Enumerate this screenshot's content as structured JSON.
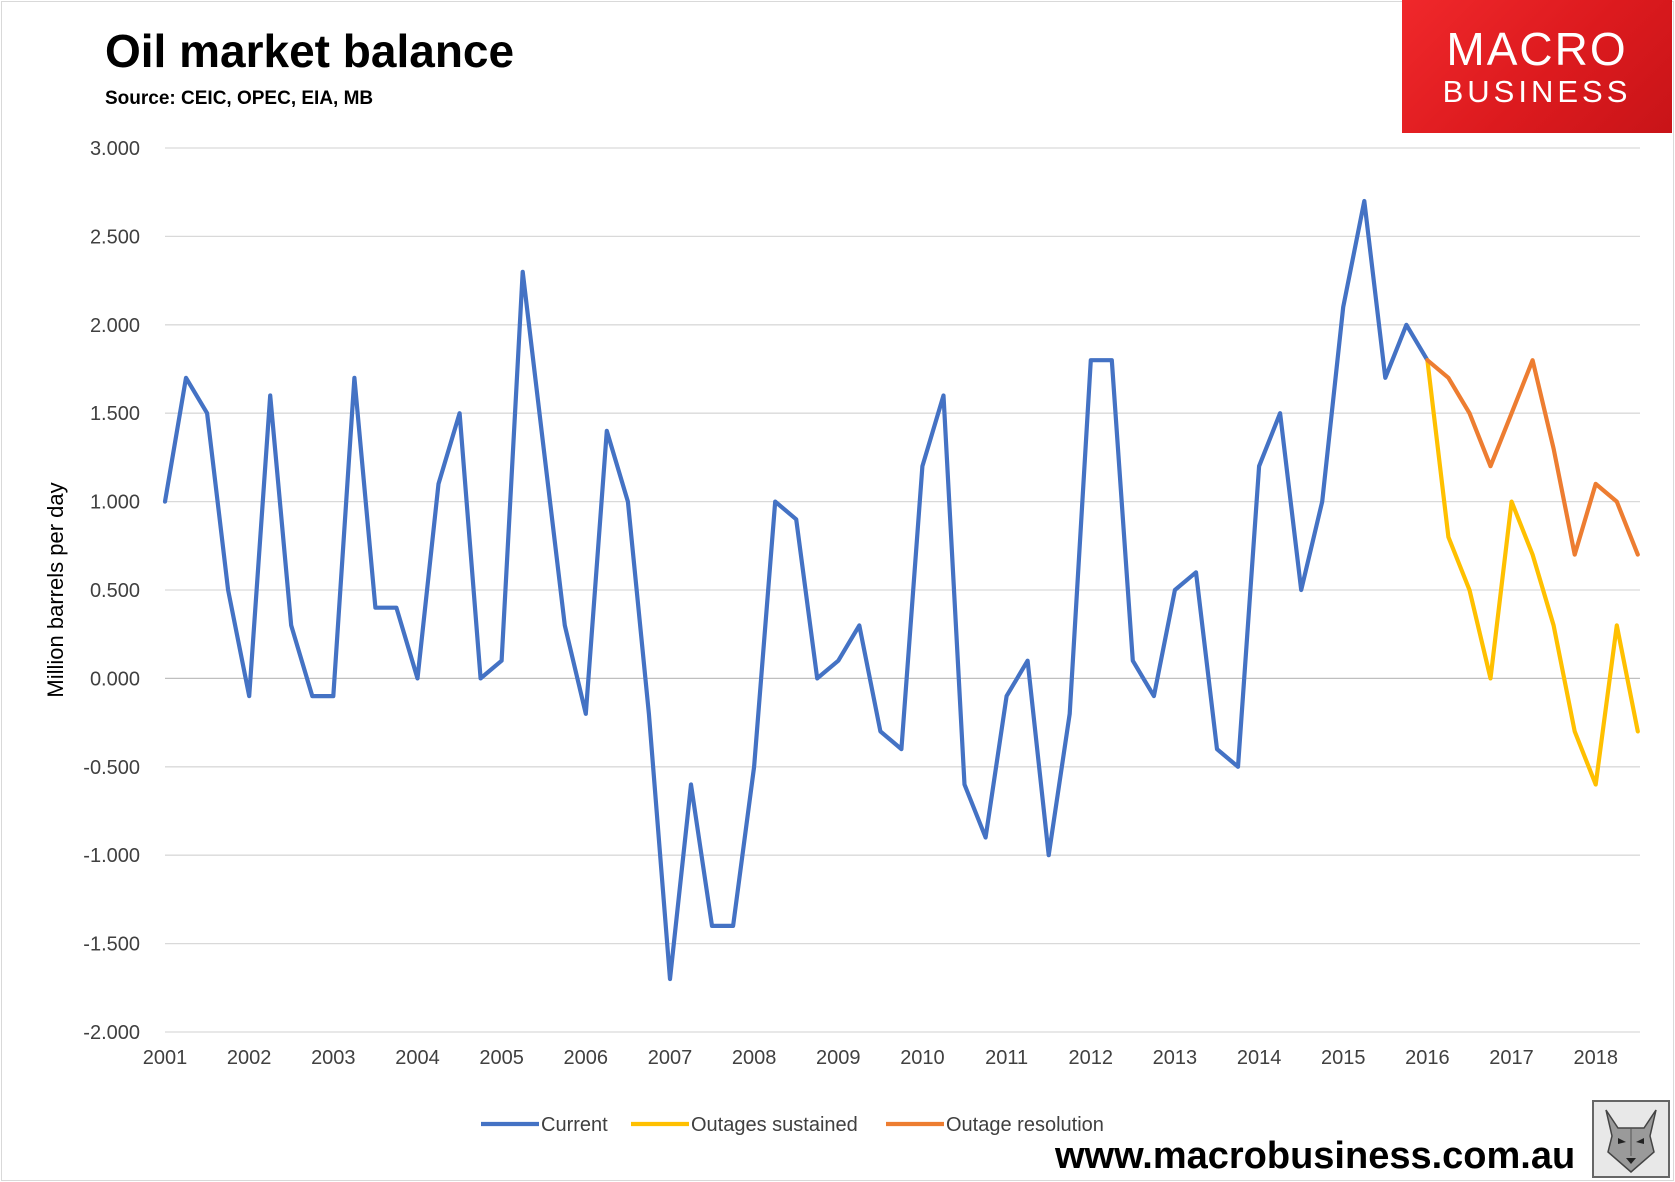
{
  "chart_data": {
    "type": "line",
    "title": "Oil market balance",
    "subtitle": "Source: CEIC, OPEC, EIA, MB",
    "xlabel": "",
    "ylabel": "Million barrels per day",
    "ylim": [
      -2.0,
      3.0
    ],
    "y_ticks": [
      "3.000",
      "2.500",
      "2.000",
      "1.500",
      "1.000",
      "0.500",
      "0.000",
      "-0.500",
      "-1.000",
      "-1.500",
      "-2.000"
    ],
    "x_ticks": [
      "2001",
      "2002",
      "2003",
      "2004",
      "2005",
      "2006",
      "2007",
      "2008",
      "2009",
      "2010",
      "2011",
      "2012",
      "2013",
      "2014",
      "2015",
      "2016",
      "2017",
      "2018"
    ],
    "x_unit": "quarter",
    "grid": true,
    "legend_position": "bottom",
    "series": [
      {
        "name": "Current",
        "color": "#4472c4",
        "start_index": 0,
        "values": [
          1.0,
          1.7,
          1.5,
          0.5,
          -0.1,
          1.6,
          0.3,
          -0.1,
          -0.1,
          1.7,
          0.4,
          0.4,
          0.0,
          1.1,
          1.5,
          0.0,
          0.1,
          2.3,
          1.3,
          0.3,
          -0.2,
          1.4,
          1.0,
          -0.2,
          -1.7,
          -0.6,
          -1.4,
          -1.4,
          -0.5,
          1.0,
          0.9,
          0.0,
          0.1,
          0.3,
          -0.3,
          -0.4,
          1.2,
          1.6,
          -0.6,
          -0.9,
          -0.1,
          0.1,
          -1.0,
          -0.2,
          1.8,
          1.8,
          0.1,
          -0.1,
          0.5,
          0.6,
          -0.4,
          -0.5,
          1.2,
          1.5,
          0.5,
          1.0,
          2.1,
          2.7,
          1.7,
          2.0,
          1.8
        ]
      },
      {
        "name": "Outages sustained",
        "color": "#ffc000",
        "start_index": 60,
        "values": [
          1.8,
          0.8,
          0.5,
          0.0,
          1.0,
          0.7,
          0.3,
          -0.3,
          -0.6,
          0.3,
          -0.3
        ]
      },
      {
        "name": "Outage resolution",
        "color": "#ed7d31",
        "start_index": 60,
        "values": [
          1.8,
          1.7,
          1.5,
          1.2,
          1.5,
          1.8,
          1.3,
          0.7,
          1.1,
          1.0,
          0.7
        ]
      }
    ]
  },
  "branding": {
    "logo_line1": "MACRO",
    "logo_line2": "BUSINESS",
    "website": "www.macrobusiness.com.au",
    "mascot_icon": "wolf-icon"
  }
}
